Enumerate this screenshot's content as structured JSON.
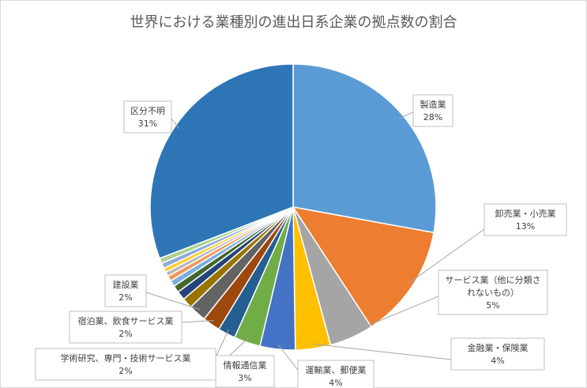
{
  "chart_data": {
    "type": "pie",
    "title": "世界における業種別の進出日系企業の拠点数の割合",
    "legend": "none",
    "slices": [
      {
        "name": "製造業",
        "value": 28,
        "label": "28%",
        "color": "#5b9bd5"
      },
      {
        "name": "卸売業・小売業",
        "value": 13,
        "label": "13%",
        "color": "#ed7d31"
      },
      {
        "name": "サービス業（他に分類されないもの）",
        "value": 5,
        "label": "5%",
        "color": "#a5a5a5"
      },
      {
        "name": "金融業・保険業",
        "value": 4,
        "label": "4%",
        "color": "#ffc000"
      },
      {
        "name": "運輸業、郵便業",
        "value": 4,
        "label": "4%",
        "color": "#4472c4"
      },
      {
        "name": "情報通信業",
        "value": 3,
        "label": "3%",
        "color": "#70ad47"
      },
      {
        "name": "学術研究、専門・技術サービス業",
        "value": 2,
        "label": "2%",
        "color": "#255e91"
      },
      {
        "name": "宿泊業、飲食サービス業",
        "value": 2,
        "label": "2%",
        "color": "#9e480e"
      },
      {
        "name": "建設業",
        "value": 2,
        "label": "2%",
        "color": "#636363"
      },
      {
        "value": 1.2,
        "color": "#997300"
      },
      {
        "value": 1.0,
        "color": "#264478"
      },
      {
        "value": 0.8,
        "color": "#43682b"
      },
      {
        "value": 0.7,
        "color": "#7cafdd"
      },
      {
        "value": 0.6,
        "color": "#f1975a"
      },
      {
        "value": 0.5,
        "color": "#b7b7b7"
      },
      {
        "value": 0.5,
        "color": "#ffcd33"
      },
      {
        "value": 0.6,
        "color": "#8faadc"
      },
      {
        "value": 0.6,
        "color": "#a9d18e"
      },
      {
        "name": "区分不明",
        "value": 31,
        "label": "31%",
        "color": "#2e75b6"
      }
    ]
  }
}
